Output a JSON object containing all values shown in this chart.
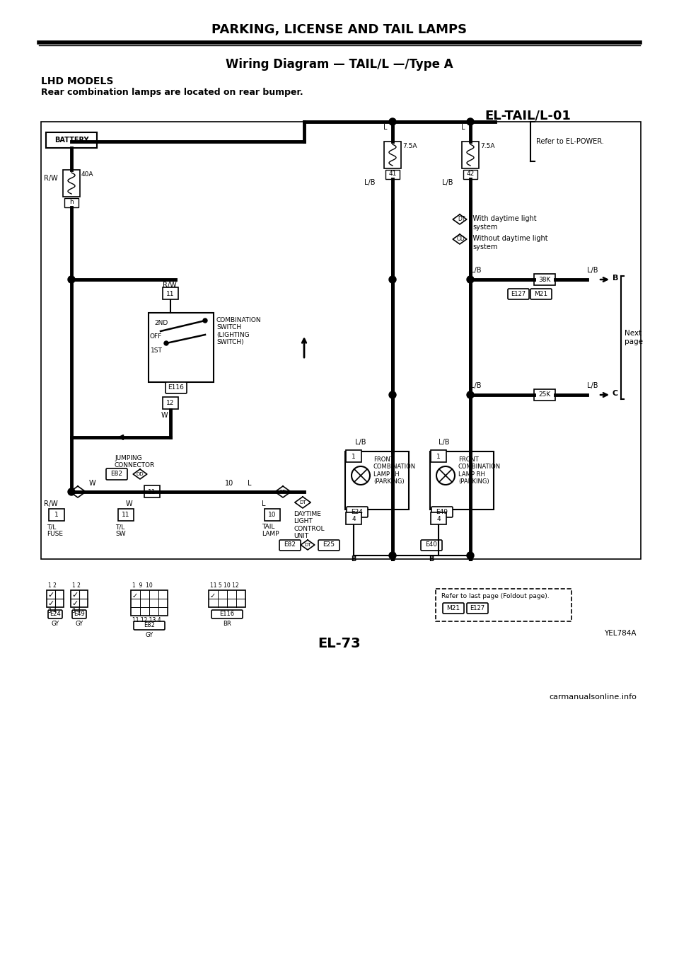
{
  "title_main": "PARKING, LICENSE AND TAIL LAMPS",
  "title_sub": "Wiring Diagram — TAIL/L —/Type A",
  "subtitle_model": "LHD MODELS",
  "subtitle_desc": "Rear combination lamps are located on rear bumper.",
  "ref_label": "EL-TAIL/L-01",
  "page_num": "EL-73",
  "watermark": "carmanualsonline.info",
  "bg_color": "#ffffff",
  "line_color": "#000000"
}
